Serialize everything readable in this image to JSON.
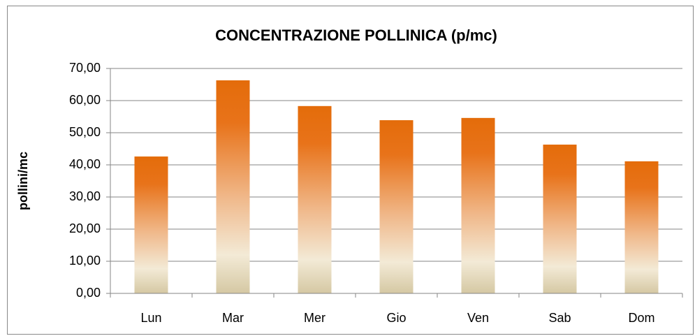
{
  "chart_data": {
    "type": "bar",
    "title": "CONCENTRAZIONE POLLINICA (p/mc)",
    "y_label": "pollini/mc",
    "categories": [
      "Lun",
      "Mar",
      "Mer",
      "Gio",
      "Ven",
      "Sab",
      "Dom"
    ],
    "values": [
      42.6,
      66.3,
      58.3,
      53.9,
      54.6,
      46.3,
      41.1
    ],
    "color": "#e46c0a",
    "ylim": [
      0,
      70
    ],
    "yticks": [
      {
        "value": 0,
        "label": "0,00"
      },
      {
        "value": 10,
        "label": "10,00"
      },
      {
        "value": 20,
        "label": "20,00"
      },
      {
        "value": 30,
        "label": "30,00"
      },
      {
        "value": 40,
        "label": "40,00"
      },
      {
        "value": 50,
        "label": "50,00"
      },
      {
        "value": 60,
        "label": "60,00"
      },
      {
        "value": 70,
        "label": "70,00"
      }
    ],
    "grid": true
  }
}
